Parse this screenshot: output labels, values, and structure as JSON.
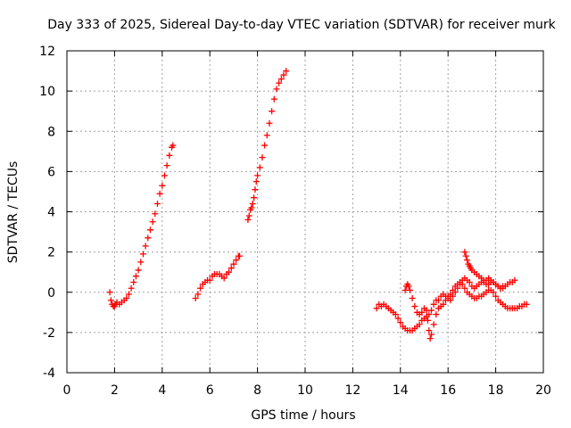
{
  "chart_data": {
    "type": "scatter",
    "title": "Day 333 of 2025, Sidereal Day-to-day VTEC variation (SDTVAR) for receiver murk",
    "xlabel": "GPS time / hours",
    "ylabel": "SDTVAR / TECUs",
    "xlim": [
      0,
      20
    ],
    "ylim": [
      -4,
      12
    ],
    "xticks": [
      0,
      2,
      4,
      6,
      8,
      10,
      12,
      14,
      16,
      18,
      20
    ],
    "yticks": [
      -4,
      -2,
      0,
      2,
      4,
      6,
      8,
      10,
      12
    ],
    "grid": true,
    "marker": "+",
    "color": "#ff0000",
    "series": [
      {
        "points": [
          [
            1.8,
            0.0
          ],
          [
            1.85,
            -0.4
          ],
          [
            1.9,
            -0.6
          ],
          [
            1.95,
            -0.7
          ],
          [
            2.0,
            -0.7
          ],
          [
            2.05,
            -0.6
          ],
          [
            2.1,
            -0.5
          ],
          [
            2.2,
            -0.6
          ],
          [
            2.3,
            -0.5
          ],
          [
            2.4,
            -0.4
          ],
          [
            2.5,
            -0.3
          ],
          [
            2.6,
            -0.1
          ],
          [
            2.7,
            0.2
          ],
          [
            2.8,
            0.5
          ],
          [
            2.9,
            0.8
          ],
          [
            3.0,
            1.1
          ],
          [
            3.1,
            1.5
          ],
          [
            3.2,
            1.9
          ],
          [
            3.3,
            2.3
          ],
          [
            3.4,
            2.7
          ],
          [
            3.5,
            3.1
          ],
          [
            3.6,
            3.5
          ],
          [
            3.7,
            3.9
          ],
          [
            3.8,
            4.4
          ],
          [
            3.9,
            4.9
          ],
          [
            4.0,
            5.3
          ],
          [
            4.1,
            5.8
          ],
          [
            4.2,
            6.3
          ],
          [
            4.3,
            6.8
          ],
          [
            4.4,
            7.2
          ],
          [
            4.45,
            7.3
          ]
        ]
      },
      {
        "points": [
          [
            5.4,
            -0.3
          ],
          [
            5.5,
            -0.1
          ],
          [
            5.6,
            0.2
          ],
          [
            5.7,
            0.4
          ],
          [
            5.8,
            0.5
          ],
          [
            5.9,
            0.6
          ],
          [
            6.0,
            0.6
          ],
          [
            6.1,
            0.8
          ],
          [
            6.2,
            0.9
          ],
          [
            6.3,
            0.9
          ],
          [
            6.4,
            0.9
          ],
          [
            6.5,
            0.8
          ],
          [
            6.6,
            0.7
          ],
          [
            6.7,
            0.9
          ],
          [
            6.8,
            1.0
          ],
          [
            6.9,
            1.2
          ],
          [
            7.0,
            1.4
          ],
          [
            7.1,
            1.6
          ],
          [
            7.2,
            1.8
          ],
          [
            7.25,
            1.8
          ]
        ]
      },
      {
        "points": [
          [
            7.6,
            3.6
          ],
          [
            7.65,
            3.8
          ],
          [
            7.7,
            4.1
          ],
          [
            7.75,
            4.2
          ],
          [
            7.8,
            4.4
          ],
          [
            7.85,
            4.7
          ],
          [
            7.9,
            5.1
          ],
          [
            7.95,
            5.5
          ],
          [
            8.0,
            5.8
          ],
          [
            8.1,
            6.2
          ],
          [
            8.2,
            6.7
          ],
          [
            8.3,
            7.3
          ],
          [
            8.4,
            7.8
          ],
          [
            8.5,
            8.4
          ],
          [
            8.6,
            9.0
          ],
          [
            8.7,
            9.6
          ],
          [
            8.8,
            10.1
          ],
          [
            8.9,
            10.4
          ],
          [
            9.0,
            10.6
          ],
          [
            9.1,
            10.8
          ],
          [
            9.2,
            11.0
          ]
        ]
      },
      {
        "points": [
          [
            13.0,
            -0.8
          ],
          [
            13.1,
            -0.6
          ],
          [
            13.2,
            -0.7
          ],
          [
            13.3,
            -0.6
          ],
          [
            13.4,
            -0.7
          ],
          [
            13.5,
            -0.8
          ],
          [
            13.6,
            -0.9
          ],
          [
            13.7,
            -1.0
          ],
          [
            13.8,
            -1.1
          ],
          [
            13.9,
            -1.3
          ],
          [
            14.0,
            -1.5
          ],
          [
            14.1,
            -1.7
          ],
          [
            14.2,
            -1.8
          ],
          [
            14.3,
            -1.9
          ],
          [
            14.4,
            -1.9
          ],
          [
            14.5,
            -1.9
          ],
          [
            14.6,
            -1.8
          ],
          [
            14.7,
            -1.7
          ],
          [
            14.8,
            -1.6
          ],
          [
            14.9,
            -1.4
          ],
          [
            15.0,
            -1.3
          ],
          [
            15.1,
            -1.2
          ],
          [
            15.2,
            -1.1
          ],
          [
            15.3,
            -0.9
          ],
          [
            15.4,
            -0.6
          ],
          [
            15.5,
            -0.4
          ],
          [
            15.6,
            -0.4
          ],
          [
            15.7,
            -0.2
          ],
          [
            15.8,
            -0.1
          ],
          [
            15.9,
            -0.2
          ],
          [
            16.0,
            -0.3
          ],
          [
            16.1,
            -0.4
          ],
          [
            16.2,
            -0.2
          ],
          [
            16.3,
            0.0
          ],
          [
            16.4,
            0.2
          ],
          [
            16.5,
            0.4
          ],
          [
            16.6,
            0.6
          ],
          [
            16.7,
            0.7
          ],
          [
            16.8,
            0.6
          ],
          [
            16.9,
            0.5
          ],
          [
            17.0,
            0.3
          ],
          [
            17.1,
            0.2
          ],
          [
            17.2,
            0.3
          ],
          [
            17.3,
            0.4
          ],
          [
            17.4,
            0.5
          ],
          [
            17.5,
            0.5
          ],
          [
            17.6,
            0.4
          ],
          [
            17.7,
            0.4
          ],
          [
            17.8,
            0.5
          ],
          [
            17.9,
            0.5
          ],
          [
            18.0,
            0.4
          ],
          [
            18.1,
            0.3
          ],
          [
            18.2,
            0.2
          ],
          [
            18.3,
            0.2
          ],
          [
            18.4,
            0.3
          ],
          [
            18.5,
            0.4
          ],
          [
            18.6,
            0.5
          ],
          [
            18.7,
            0.5
          ],
          [
            18.8,
            0.6
          ]
        ]
      },
      {
        "points": [
          [
            14.2,
            0.1
          ],
          [
            14.25,
            0.3
          ],
          [
            14.3,
            0.4
          ],
          [
            14.35,
            0.3
          ],
          [
            14.4,
            0.1
          ],
          [
            14.5,
            -0.3
          ],
          [
            14.6,
            -0.7
          ],
          [
            14.7,
            -1.0
          ],
          [
            14.8,
            -1.1
          ],
          [
            14.9,
            -1.0
          ],
          [
            15.0,
            -0.8
          ],
          [
            15.1,
            -0.9
          ],
          [
            15.15,
            -1.4
          ],
          [
            15.2,
            -1.9
          ],
          [
            15.25,
            -2.3
          ],
          [
            15.3,
            -2.1
          ],
          [
            15.4,
            -1.6
          ],
          [
            15.5,
            -1.1
          ],
          [
            15.6,
            -0.8
          ],
          [
            15.7,
            -0.7
          ],
          [
            15.8,
            -0.6
          ],
          [
            15.9,
            -0.4
          ],
          [
            16.0,
            -0.2
          ],
          [
            16.1,
            -0.1
          ],
          [
            16.2,
            0.1
          ],
          [
            16.3,
            0.3
          ],
          [
            16.4,
            0.4
          ],
          [
            16.5,
            0.5
          ],
          [
            16.6,
            0.4
          ],
          [
            16.7,
            0.2
          ],
          [
            16.8,
            0.0
          ],
          [
            16.9,
            -0.1
          ],
          [
            17.0,
            -0.2
          ],
          [
            17.1,
            -0.3
          ],
          [
            17.2,
            -0.3
          ],
          [
            17.3,
            -0.2
          ],
          [
            17.4,
            -0.2
          ],
          [
            17.5,
            -0.1
          ],
          [
            17.6,
            0.0
          ],
          [
            17.7,
            0.1
          ],
          [
            17.8,
            0.1
          ],
          [
            17.9,
            0.0
          ],
          [
            18.0,
            -0.2
          ],
          [
            18.1,
            -0.4
          ],
          [
            18.2,
            -0.5
          ],
          [
            18.3,
            -0.6
          ],
          [
            18.4,
            -0.7
          ],
          [
            18.5,
            -0.8
          ],
          [
            18.6,
            -0.8
          ],
          [
            18.7,
            -0.8
          ],
          [
            18.8,
            -0.8
          ],
          [
            18.9,
            -0.8
          ],
          [
            19.0,
            -0.7
          ],
          [
            19.1,
            -0.7
          ],
          [
            19.2,
            -0.6
          ],
          [
            19.3,
            -0.6
          ]
        ]
      },
      {
        "points": [
          [
            16.7,
            2.0
          ],
          [
            16.75,
            1.8
          ],
          [
            16.8,
            1.6
          ],
          [
            16.85,
            1.4
          ],
          [
            16.9,
            1.3
          ],
          [
            16.95,
            1.2
          ],
          [
            17.0,
            1.1
          ],
          [
            17.1,
            1.0
          ],
          [
            17.2,
            0.9
          ],
          [
            17.3,
            0.8
          ],
          [
            17.4,
            0.7
          ],
          [
            17.5,
            0.6
          ],
          [
            17.6,
            0.6
          ],
          [
            17.7,
            0.7
          ],
          [
            17.8,
            0.6
          ],
          [
            17.9,
            0.5
          ],
          [
            18.0,
            0.4
          ],
          [
            18.1,
            0.3
          ],
          [
            18.2,
            0.2
          ],
          [
            18.3,
            0.3
          ]
        ]
      }
    ]
  }
}
